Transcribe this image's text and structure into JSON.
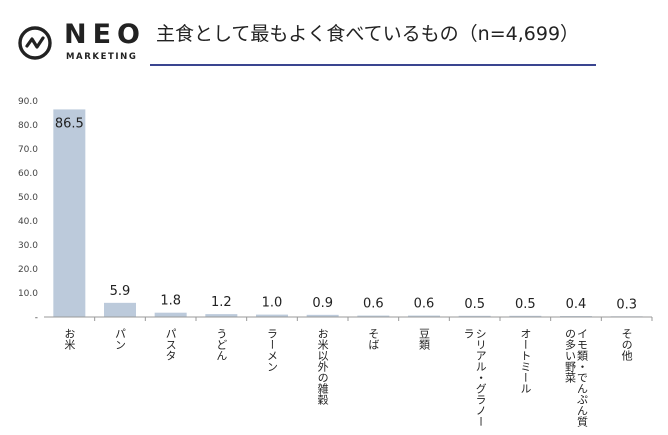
{
  "brand": {
    "name": "NEO",
    "subtitle": "MARKETING",
    "logo_icon": "neo-circle-zigzag-icon"
  },
  "chart_data": {
    "type": "bar",
    "title": "主食として最もよく食べているもの（n=4,699）",
    "categories": [
      "お米",
      "パン",
      "パスタ",
      "うどん",
      "ラーメン",
      "お米以外の雑穀",
      "そば",
      "豆類",
      "シリアル・グラノーラ",
      "オートミール",
      "イモ類・でんぷん質の多い野菜",
      "その他"
    ],
    "category_lines": [
      [
        "お米"
      ],
      [
        "パン"
      ],
      [
        "パスタ"
      ],
      [
        "うどん"
      ],
      [
        "ラーメン"
      ],
      [
        "お米以外の雑穀"
      ],
      [
        "そば"
      ],
      [
        "豆類"
      ],
      [
        "シリアル・グラノー",
        "ラ"
      ],
      [
        "オートミール"
      ],
      [
        "イモ類・でんぷん質",
        "の多い野菜"
      ],
      [
        "その他"
      ]
    ],
    "values": [
      86.5,
      5.9,
      1.8,
      1.2,
      1.0,
      0.9,
      0.6,
      0.6,
      0.5,
      0.5,
      0.4,
      0.3
    ],
    "value_labels": [
      "86.5",
      "5.9",
      "1.8",
      "1.2",
      "1.0",
      "0.9",
      "0.6",
      "0.6",
      "0.5",
      "0.5",
      "0.4",
      "0.3"
    ],
    "yticks": [
      "-",
      "10.0",
      "20.0",
      "30.0",
      "40.0",
      "50.0",
      "60.0",
      "70.0",
      "80.0",
      "90.0"
    ],
    "ylim": [
      0,
      90
    ],
    "xlabel": "",
    "ylabel": "",
    "grid": false,
    "bar_color": "#bccadb",
    "axis_color": "#999999"
  }
}
